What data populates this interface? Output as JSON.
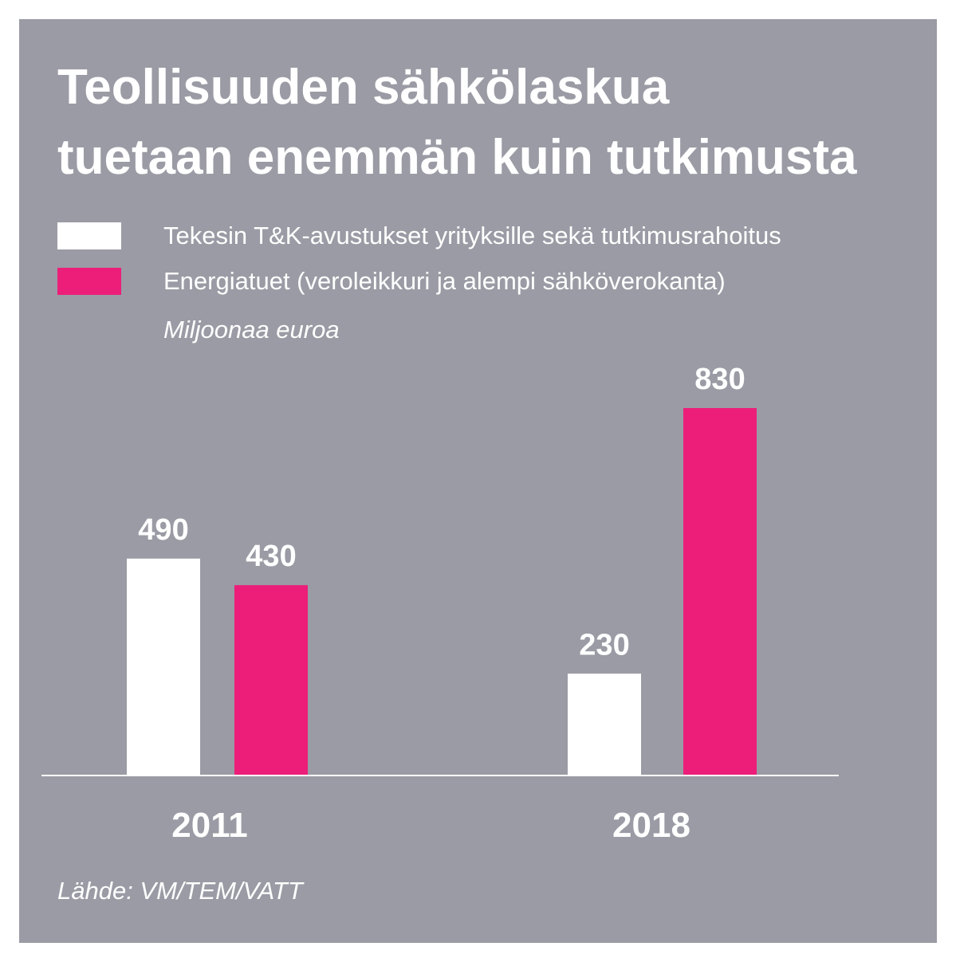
{
  "title_lines": [
    "Teollisuuden sähkölaskua",
    "tuetaan enemmän kuin tutkimusta"
  ],
  "legend": [
    {
      "label": "Tekesin T&K-avustukset yrityksille sekä tutkimusrahoitus",
      "color": "#ffffff"
    },
    {
      "label": "Energiatuet (veroleikkuri ja alempi sähköverokanta)",
      "color": "#ec1e79"
    }
  ],
  "unit_label": "Miljoonaa euroa",
  "source": "Lähde: VM/TEM/VATT",
  "colors": {
    "background": "#9b9ba5",
    "text": "#ffffff",
    "accent": "#ec1e79"
  },
  "chart_data": {
    "type": "bar",
    "categories": [
      "2011",
      "2018"
    ],
    "series": [
      {
        "name": "Tekesin T&K-avustukset yrityksille sekä tutkimusrahoitus",
        "values": [
          490,
          230
        ],
        "color": "#ffffff"
      },
      {
        "name": "Energiatuet (veroleikkuri ja alempi sähköverokanta)",
        "values": [
          430,
          830
        ],
        "color": "#ec1e79"
      }
    ],
    "data_labels": [
      [
        "490",
        "230"
      ],
      [
        "430",
        "830"
      ]
    ],
    "ylim": [
      0,
      830
    ],
    "grid": false,
    "legend_position": "top-left"
  }
}
